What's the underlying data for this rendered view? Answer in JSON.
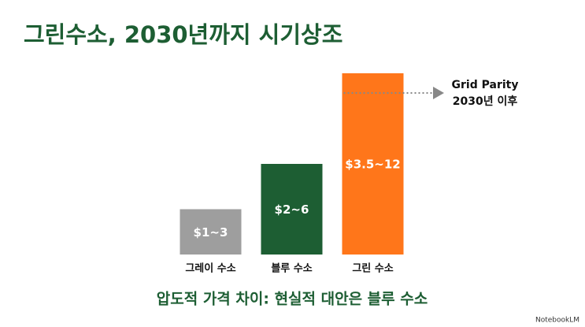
{
  "chart_data": {
    "type": "bar",
    "title": "그린수소, 2030년까지 시기상조",
    "categories": [
      "그레이 수소",
      "블루 수소",
      "그린 수소"
    ],
    "values": [
      3,
      6,
      12
    ],
    "value_labels": [
      "$1~3",
      "$2~6",
      "$3.5~12"
    ],
    "colors": [
      "#9e9e9e",
      "#1d5e33",
      "#ff761a"
    ],
    "ylim": [
      0,
      12
    ],
    "annotation": [
      "Grid Parity",
      "2030년 이후"
    ],
    "subtitle": "압도적 가격 차이: 현실적 대안은 블루 수소",
    "footer": "NotebookLM"
  }
}
